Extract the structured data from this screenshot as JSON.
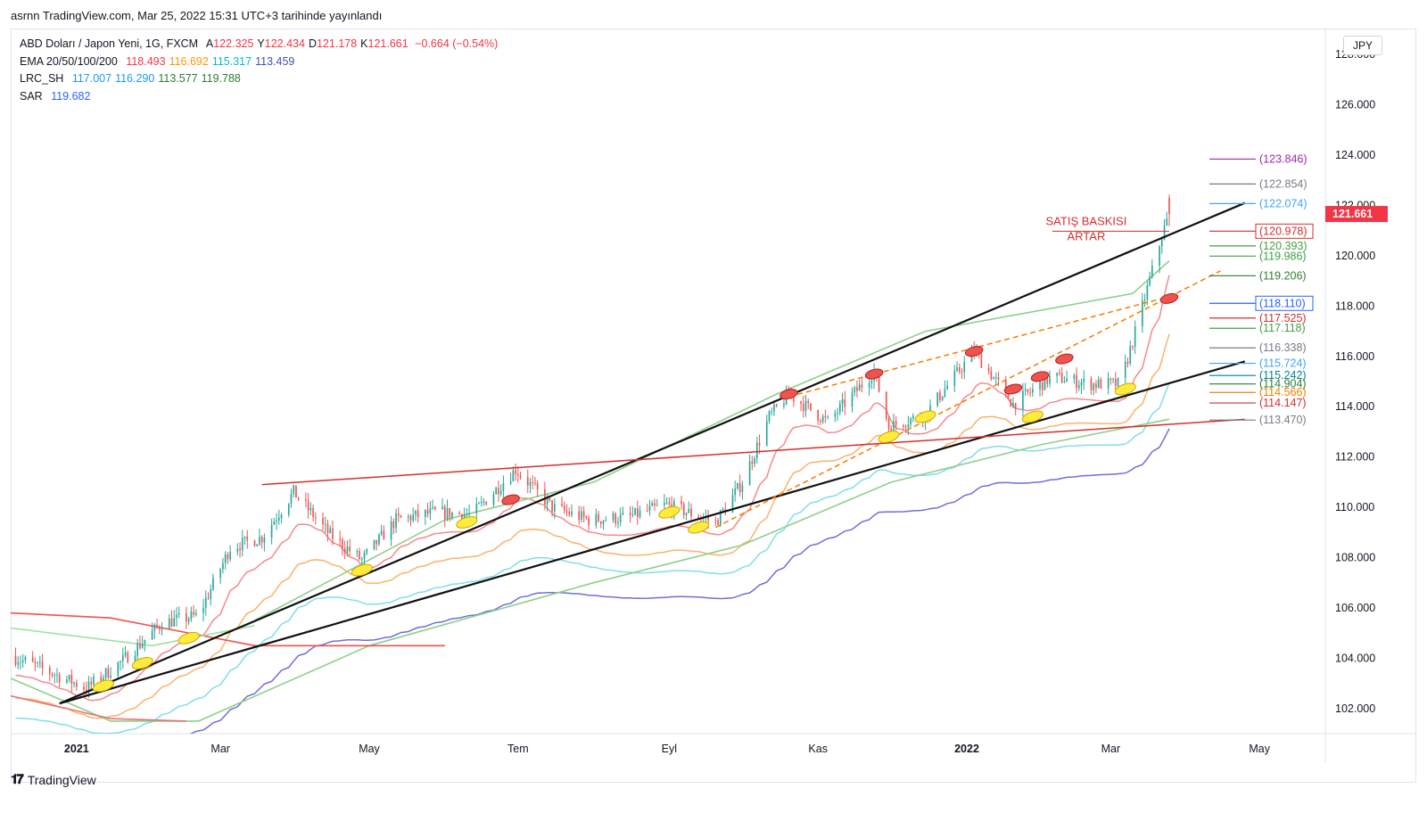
{
  "published_line": "asrnn TradingView.com, Mar 25, 2022 15:31 UTC+3 tarihinde yayınlandı",
  "footer_brand": "TradingView",
  "currency_button": "JPY",
  "legend": {
    "symbol": "ABD Doları / Japon Yeni, 1G, FXCM",
    "ohlc": [
      {
        "k": "A",
        "v": "122.325"
      },
      {
        "k": "Y",
        "v": "122.434"
      },
      {
        "k": "D",
        "v": "121.178"
      },
      {
        "k": "K",
        "v": "121.661"
      }
    ],
    "change": "−0.664 (−0.54%)",
    "ema": {
      "label": "EMA 20/50/100/200",
      "values": [
        "118.493",
        "116.692",
        "115.317",
        "113.459"
      ],
      "colors": [
        "#f23645",
        "#ff9800",
        "#00bcd4",
        "#3f51b5"
      ]
    },
    "lrc": {
      "label": "LRC_SH",
      "values": [
        "117.007",
        "116.290",
        "113.577",
        "119.788"
      ],
      "colors": [
        "#2196f3",
        "#2196f3",
        "#2e7d32",
        "#2e7d32"
      ]
    },
    "sar": {
      "label": "SAR",
      "values": [
        "119.682"
      ],
      "colors": [
        "#2962ff"
      ]
    }
  },
  "chart_data": {
    "type": "candlestick",
    "symbol": "USDJPY",
    "timeframe": "1D",
    "y_range": [
      101.0,
      129.0
    ],
    "y_ticks": [
      "102.000",
      "104.000",
      "106.000",
      "108.000",
      "110.000",
      "112.000",
      "114.000",
      "116.000",
      "118.000",
      "120.000",
      "122.000",
      "124.000",
      "126.000",
      "128.000"
    ],
    "x_start": "2020-12-05",
    "x_end": "2022-05-28",
    "x_ticks": [
      {
        "label": "2021",
        "date": "2021-01-01"
      },
      {
        "label": "Mar",
        "date": "2021-03-01"
      },
      {
        "label": "May",
        "date": "2021-05-01"
      },
      {
        "label": "Tem",
        "date": "2021-07-01"
      },
      {
        "label": "Eyl",
        "date": "2021-09-01"
      },
      {
        "label": "Kas",
        "date": "2021-11-01"
      },
      {
        "label": "2022",
        "date": "2022-01-01"
      },
      {
        "label": "Mar",
        "date": "2022-03-01"
      },
      {
        "label": "May",
        "date": "2022-05-01"
      }
    ],
    "last_price": "121.661",
    "last_price_color": "#f23645",
    "up_color": "#26a69a",
    "down_color": "#ef5350",
    "close_path": [
      [
        "2020-12-05",
        104.1
      ],
      [
        "2020-12-20",
        103.5
      ],
      [
        "2021-01-05",
        102.8
      ],
      [
        "2021-01-20",
        103.9
      ],
      [
        "2021-02-05",
        105.4
      ],
      [
        "2021-02-20",
        105.7
      ],
      [
        "2021-03-05",
        108.4
      ],
      [
        "2021-03-18",
        108.8
      ],
      [
        "2021-03-31",
        110.6
      ],
      [
        "2021-04-15",
        108.9
      ],
      [
        "2021-04-28",
        107.9
      ],
      [
        "2021-05-12",
        109.5
      ],
      [
        "2021-05-28",
        109.8
      ],
      [
        "2021-06-12",
        109.7
      ],
      [
        "2021-06-30",
        111.5
      ],
      [
        "2021-07-15",
        110.0
      ],
      [
        "2021-07-30",
        109.5
      ],
      [
        "2021-08-15",
        109.6
      ],
      [
        "2021-08-31",
        110.1
      ],
      [
        "2021-09-20",
        109.4
      ],
      [
        "2021-10-01",
        111.0
      ],
      [
        "2021-10-12",
        113.6
      ],
      [
        "2021-10-20",
        114.5
      ],
      [
        "2021-11-05",
        113.4
      ],
      [
        "2021-11-24",
        115.4
      ],
      [
        "2021-11-30",
        113.2
      ],
      [
        "2021-12-15",
        113.7
      ],
      [
        "2022-01-04",
        116.2
      ],
      [
        "2022-01-20",
        114.1
      ],
      [
        "2022-02-05",
        115.2
      ],
      [
        "2022-02-20",
        114.9
      ],
      [
        "2022-03-05",
        114.9
      ],
      [
        "2022-03-12",
        117.3
      ],
      [
        "2022-03-22",
        120.8
      ],
      [
        "2022-03-25",
        121.661
      ]
    ],
    "ema_lines": [
      {
        "name": "EMA 20",
        "color": "#f48a8c",
        "offset": -0.7,
        "smooth": 10
      },
      {
        "name": "EMA 50",
        "color": "#f9b36a",
        "offset": -1.6,
        "smooth": 20
      },
      {
        "name": "EMA 100",
        "color": "#80deea",
        "offset": -2.4,
        "smooth": 35
      },
      {
        "name": "EMA 200",
        "color": "#6f6fd8",
        "offset": -3.4,
        "smooth": 55
      }
    ],
    "lrc_lines": [
      {
        "name": "LRC upper",
        "color": "#f05050",
        "points": [
          [
            "2020-12-05",
            105.8
          ],
          [
            "2021-01-15",
            105.6
          ],
          [
            "2021-03-15",
            104.5
          ],
          [
            "2021-06-01",
            104.5
          ]
        ]
      },
      {
        "name": "LRC lower",
        "color": "#9fe0a0",
        "points": [
          [
            "2020-12-05",
            105.2
          ],
          [
            "2021-02-01",
            104.5
          ],
          [
            "2021-03-15",
            105.3
          ]
        ]
      }
    ],
    "bands": [
      {
        "name": "lower channel",
        "color": "#8fcf8a",
        "points": [
          [
            "2020-12-05",
            103.2
          ],
          [
            "2021-01-15",
            101.5
          ],
          [
            "2021-02-20",
            101.5
          ],
          [
            "2021-05-01",
            104.5
          ],
          [
            "2021-08-01",
            107.0
          ],
          [
            "2021-10-01",
            108.5
          ],
          [
            "2021-12-01",
            111.0
          ],
          [
            "2022-02-01",
            112.5
          ],
          [
            "2022-03-25",
            113.5
          ]
        ]
      },
      {
        "name": "upper channel",
        "color": "#8fcf8a",
        "points": [
          [
            "2021-03-15",
            105.5
          ],
          [
            "2021-06-01",
            109.5
          ],
          [
            "2021-08-01",
            111.0
          ],
          [
            "2021-10-15",
            114.5
          ],
          [
            "2021-12-15",
            117.0
          ],
          [
            "2022-03-10",
            118.5
          ],
          [
            "2022-03-25",
            119.8
          ]
        ]
      },
      {
        "name": "lower red band",
        "color": "#e57373",
        "points": [
          [
            "2020-12-05",
            102.5
          ],
          [
            "2021-01-15",
            101.6
          ],
          [
            "2021-02-15",
            101.5
          ]
        ]
      }
    ],
    "trendlines": [
      {
        "name": "lower support",
        "color": "#111111",
        "width": 2.2,
        "from": [
          "2020-12-25",
          102.2
        ],
        "to": [
          "2022-04-25",
          115.8
        ]
      },
      {
        "name": "upper support",
        "color": "#111111",
        "width": 2.2,
        "from": [
          "2020-12-25",
          102.2
        ],
        "to": [
          "2022-04-25",
          122.1
        ]
      },
      {
        "name": "red resistance",
        "color": "#d32f2f",
        "width": 1.5,
        "from": [
          "2021-03-18",
          110.9
        ],
        "to": [
          "2022-04-25",
          113.5
        ]
      },
      {
        "name": "orange upper",
        "color": "#f57c00",
        "width": 1.5,
        "dashed": true,
        "from": [
          "2021-10-20",
          114.4
        ],
        "to": [
          "2022-03-22",
          118.3
        ]
      },
      {
        "name": "orange lower",
        "color": "#f57c00",
        "width": 1.5,
        "dashed": true,
        "from": [
          "2021-09-20",
          109.2
        ],
        "to": [
          "2022-04-15",
          119.4
        ]
      }
    ],
    "red_hline": {
      "name": "SATIŞ BASKISI ARTAR line",
      "color": "#d32f2f",
      "from": "2022-02-05",
      "to": "2022-03-25",
      "value": 120.978
    },
    "annotation": {
      "lines": [
        "SATIŞ BASKISI",
        "ARTAR"
      ],
      "color": "#d32f2f",
      "date": "2022-02-08",
      "value": 121.0
    },
    "yellow_markers": [
      [
        "2021-01-12",
        102.9
      ],
      [
        "2021-01-28",
        103.8
      ],
      [
        "2021-02-16",
        104.8
      ],
      [
        "2021-04-28",
        107.5
      ],
      [
        "2021-06-10",
        109.4
      ],
      [
        "2021-09-01",
        109.8
      ],
      [
        "2021-09-13",
        109.2
      ],
      [
        "2021-11-30",
        112.8
      ],
      [
        "2021-12-15",
        113.6
      ],
      [
        "2022-01-28",
        113.6
      ],
      [
        "2022-03-07",
        114.7
      ]
    ],
    "red_markers": [
      [
        "2021-06-28",
        110.3
      ],
      [
        "2021-10-20",
        114.5
      ],
      [
        "2021-11-24",
        115.3
      ],
      [
        "2022-01-04",
        116.2
      ],
      [
        "2022-01-20",
        114.7
      ],
      [
        "2022-01-31",
        115.2
      ],
      [
        "2022-02-10",
        115.9
      ],
      [
        "2022-03-25",
        118.3
      ]
    ],
    "fib_levels": [
      {
        "value": 123.846,
        "label": "(123.846)",
        "color": "#9c27b0"
      },
      {
        "value": 122.854,
        "label": "(122.854)",
        "color": "#787b86"
      },
      {
        "value": 122.074,
        "label": "(122.074)",
        "color": "#42a5f5"
      },
      {
        "value": 120.978,
        "label": "(120.978)",
        "color": "#d32f2f",
        "boxed": true
      },
      {
        "value": 120.393,
        "label": "(120.393)",
        "color": "#43a047"
      },
      {
        "value": 119.986,
        "label": "(119.986)",
        "color": "#43a047"
      },
      {
        "value": 119.206,
        "label": "(119.206)",
        "color": "#2e7d32"
      },
      {
        "value": 118.11,
        "label": "(118.110)",
        "color": "#2962ff",
        "boxed": true
      },
      {
        "value": 117.525,
        "label": "(117.525)",
        "color": "#d32f2f"
      },
      {
        "value": 117.118,
        "label": "(117.118)",
        "color": "#43a047"
      },
      {
        "value": 116.338,
        "label": "(116.338)",
        "color": "#787b86"
      },
      {
        "value": 115.724,
        "label": "(115.724)",
        "color": "#42a5f5"
      },
      {
        "value": 115.242,
        "label": "(115.242)",
        "color": "#00838f"
      },
      {
        "value": 114.904,
        "label": "(114.904)",
        "color": "#2e7d32"
      },
      {
        "value": 114.566,
        "label": "(114.566)",
        "color": "#f57c00"
      },
      {
        "value": 114.147,
        "label": "(114.147)",
        "color": "#d32f2f"
      },
      {
        "value": 113.47,
        "label": "(113.470)",
        "color": "#787b86"
      }
    ]
  }
}
